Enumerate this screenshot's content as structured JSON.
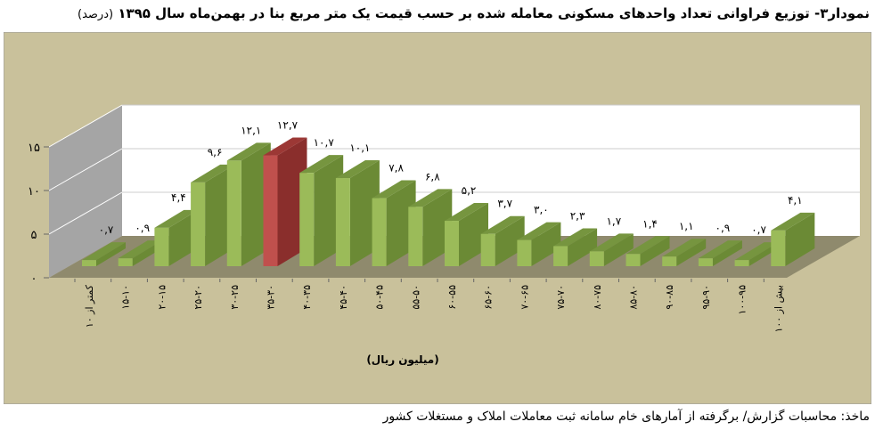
{
  "title": "نمودار۳- توزیع فراوانی تعداد واحدهای مسکونی معامله شده بر حسب قیمت یک متر مربع بنا در بهمن‌ماه سال ۱۳۹۵",
  "title_unit": "(درصد)",
  "source": "ماخذ: محاسبات گزارش/ برگرفته از آمارهای خام سامانه ثبت معاملات املاک و مستغلات کشور",
  "colors": {
    "bar": "#9BBB59",
    "bar_side": "#6B8A35",
    "highlight": "#C0504D",
    "highlight_side": "#8A2E2C",
    "background": "#C9C19B",
    "floor": "#8F8A6D",
    "left_wall": "#A5A5A5",
    "back_wall": "#FFFFFF"
  },
  "chart_data": {
    "type": "bar",
    "style": "3d-column",
    "xlabel": "(میلیون ریال)",
    "ylabel": "",
    "ylim": [
      0,
      15
    ],
    "yticks": [
      "۰",
      "۵",
      "۱۰",
      "۱۵"
    ],
    "ytick_values": [
      0,
      5,
      10,
      15
    ],
    "grid": true,
    "highlight_index": 5,
    "categories": [
      "کمتر از ۱۰",
      "۱۵-۱۰",
      "۲۰-۱۵",
      "۲۵-۲۰",
      "۳۰-۲۵",
      "۳۵-۳۰",
      "۴۰-۳۵",
      "۴۵-۴۰",
      "۵۰-۴۵",
      "۵۵-۵۰",
      "۶۰-۵۵",
      "۶۵-۶۰",
      "۷۰-۶۵",
      "۷۵-۷۰",
      "۸۰-۷۵",
      "۸۵-۸۰",
      "۹۰-۸۵",
      "۹۵-۹۰",
      "۱۰۰-۹۵",
      "بیش از ۱۰۰"
    ],
    "values": [
      0.7,
      0.9,
      4.4,
      9.6,
      12.1,
      12.7,
      10.7,
      10.1,
      7.8,
      6.8,
      5.2,
      3.7,
      3.0,
      2.3,
      1.7,
      1.4,
      1.1,
      0.9,
      0.7,
      4.1
    ],
    "data_labels": [
      "۰,۷",
      "۰,۹",
      "۴,۴",
      "۹,۶",
      "۱۲,۱",
      "۱۲,۷",
      "۱۰,۷",
      "۱۰,۱",
      "۷,۸",
      "۶,۸",
      "۵,۲",
      "۳,۷",
      "۳,۰",
      "۲,۳",
      "۱,۷",
      "۱,۴",
      "۱,۱",
      "۰,۹",
      "۰,۷",
      "۴,۱"
    ]
  }
}
